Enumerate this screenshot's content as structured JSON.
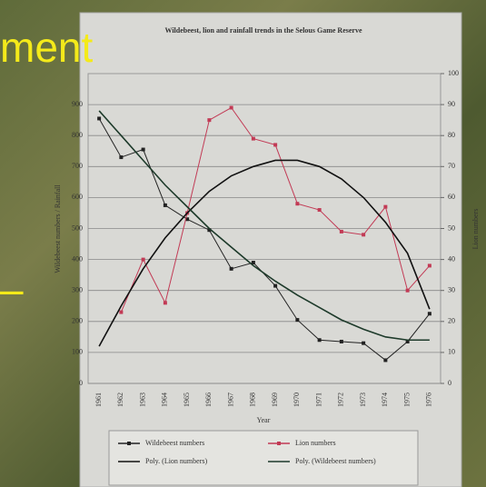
{
  "slide": {
    "title_fragment": "ment",
    "bullet": "–"
  },
  "chart_data": {
    "type": "line",
    "title": "Wildebeest, lion and rainfall trends in the Selous Game Reserve",
    "x_label": "Year",
    "y_label": "Wildebeest numbers / Rainfall",
    "y2_label": "Lion numbers",
    "categories": [
      "1961",
      "1962",
      "1963",
      "1964",
      "1965",
      "1966",
      "1967",
      "1968",
      "1969",
      "1970",
      "1971",
      "1972",
      "1973",
      "1974",
      "1975",
      "1976"
    ],
    "ylim": [
      0,
      1000
    ],
    "yticks": [
      0,
      100,
      200,
      300,
      400,
      500,
      600,
      700,
      800,
      900
    ],
    "y2lim": [
      0,
      100
    ],
    "y2ticks": [
      0,
      10,
      20,
      30,
      40,
      50,
      60,
      70,
      80,
      90,
      100
    ],
    "grid": true,
    "legend": "bottom",
    "series": [
      {
        "name": "Wildebeest numbers",
        "color": "#222222",
        "marker": true,
        "values": [
          855,
          730,
          755,
          575,
          530,
          495,
          370,
          390,
          315,
          205,
          140,
          135,
          130,
          75,
          135,
          225
        ]
      },
      {
        "name": "Lion numbers",
        "color": "#c23a55",
        "marker": true,
        "axis": "y2",
        "values": [
          null,
          23,
          40,
          26,
          55,
          85,
          89,
          79,
          77,
          58,
          56,
          49,
          48,
          57,
          30,
          38
        ]
      },
      {
        "name": "Poly. (Lion numbers)",
        "color": "#111111",
        "marker": false,
        "axis": "y2",
        "values": [
          12,
          25,
          37,
          47,
          55,
          62,
          67,
          70,
          72,
          72,
          70,
          66,
          60,
          52,
          42,
          24
        ]
      },
      {
        "name": "Poly. (Wildebeest numbers)",
        "color": "#1d3a2a",
        "marker": false,
        "values": [
          880,
          800,
          720,
          640,
          570,
          500,
          440,
          380,
          330,
          285,
          245,
          205,
          175,
          150,
          140,
          140
        ]
      }
    ]
  }
}
